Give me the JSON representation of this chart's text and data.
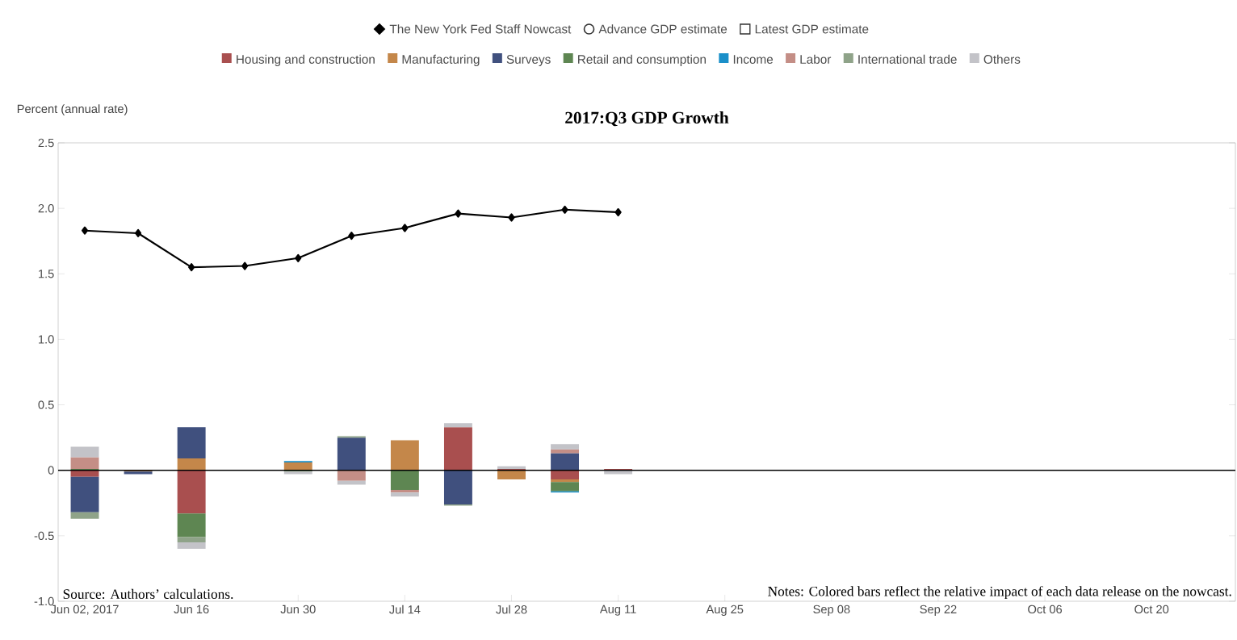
{
  "chart_data": {
    "type": "bar",
    "stacked": true,
    "title": "2017:Q3 GDP Growth",
    "ylabel": "Percent (annual rate)",
    "annotations": [
      "Source: Authors’ calculations.",
      "Notes: Colored bars reflect the relative impact of each data release on the nowcast."
    ],
    "x": [
      "2017-06-02",
      "2017-06-09",
      "2017-06-16",
      "2017-06-23",
      "2017-06-30",
      "2017-07-07",
      "2017-07-14",
      "2017-07-21",
      "2017-07-28",
      "2017-08-04",
      "2017-08-11"
    ],
    "xlim": [
      "2017-05-29T12:00",
      "2017-10-31"
    ],
    "xticks": [
      {
        "value": "2017-06-02",
        "label": "Jun 02, 2017"
      },
      {
        "value": "2017-06-16",
        "label": "Jun 16"
      },
      {
        "value": "2017-06-30",
        "label": "Jun 30"
      },
      {
        "value": "2017-07-14",
        "label": "Jul 14"
      },
      {
        "value": "2017-07-28",
        "label": "Jul 28"
      },
      {
        "value": "2017-08-11",
        "label": "Aug 11"
      },
      {
        "value": "2017-08-25",
        "label": "Aug 25"
      },
      {
        "value": "2017-09-08",
        "label": "Sep 08"
      },
      {
        "value": "2017-09-22",
        "label": "Sep 22"
      },
      {
        "value": "2017-10-06",
        "label": "Oct 06"
      },
      {
        "value": "2017-10-20",
        "label": "Oct 20"
      }
    ],
    "ylim": [
      -1.0,
      2.5
    ],
    "yticks": [
      {
        "value": -1,
        "label": "-1.0"
      },
      -0.5,
      {
        "value": 0,
        "label": "0"
      },
      0.5,
      {
        "value": 1,
        "label": "1.0"
      },
      1.5,
      {
        "value": 2,
        "label": "2.0"
      },
      2.5
    ],
    "legend": "top",
    "ref_lines": [
      {
        "axis": "y",
        "value": 0,
        "color": "#000000"
      }
    ],
    "series": [
      {
        "name": "The New York Fed Staff Nowcast",
        "type": "line",
        "marker": "diamond",
        "color": "#000000",
        "values": [
          1.83,
          1.81,
          1.55,
          1.56,
          1.62,
          1.79,
          1.85,
          1.96,
          1.93,
          1.99,
          1.97
        ]
      },
      {
        "name": "Advance GDP estimate",
        "type": "scatter",
        "marker": "circle",
        "color": "#333333",
        "values": [
          null,
          null,
          null,
          null,
          null,
          null,
          null,
          null,
          null,
          null,
          null
        ]
      },
      {
        "name": "Latest GDP estimate",
        "type": "scatter",
        "marker": "square",
        "color": "#333333",
        "values": [
          null,
          null,
          null,
          null,
          null,
          null,
          null,
          null,
          null,
          null,
          null
        ]
      },
      {
        "name": "Housing and construction",
        "color": "#a94f4f",
        "values": [
          -0.05,
          null,
          -0.33,
          null,
          null,
          null,
          null,
          0.33,
          0.01,
          -0.07,
          0.01
        ]
      },
      {
        "name": "Manufacturing",
        "color": "#c4874a",
        "values": [
          null,
          -0.01,
          0.09,
          null,
          0.06,
          null,
          0.23,
          null,
          -0.07,
          -0.02,
          null
        ]
      },
      {
        "name": "Surveys",
        "color": "#40507e",
        "values": [
          -0.27,
          -0.02,
          0.24,
          null,
          null,
          0.25,
          null,
          -0.26,
          null,
          0.13,
          null
        ]
      },
      {
        "name": "Retail and consumption",
        "color": "#5e8652",
        "values": [
          0.01,
          null,
          -0.18,
          null,
          -0.01,
          null,
          -0.15,
          null,
          null,
          -0.07,
          null
        ]
      },
      {
        "name": "Income",
        "color": "#1a8fc9",
        "values": [
          null,
          null,
          null,
          null,
          0.01,
          null,
          null,
          null,
          null,
          -0.01,
          null
        ]
      },
      {
        "name": "Labor",
        "color": "#c48e86",
        "values": [
          0.09,
          null,
          null,
          null,
          null,
          -0.08,
          -0.02,
          null,
          null,
          0.03,
          null
        ]
      },
      {
        "name": "International trade",
        "color": "#8fa389",
        "values": [
          -0.05,
          null,
          -0.04,
          null,
          null,
          0.01,
          null,
          -0.01,
          null,
          null,
          null
        ]
      },
      {
        "name": "Others",
        "color": "#c3c3c8",
        "values": [
          0.08,
          null,
          -0.05,
          null,
          -0.02,
          -0.03,
          -0.03,
          0.03,
          0.02,
          0.04,
          -0.03
        ]
      }
    ]
  }
}
